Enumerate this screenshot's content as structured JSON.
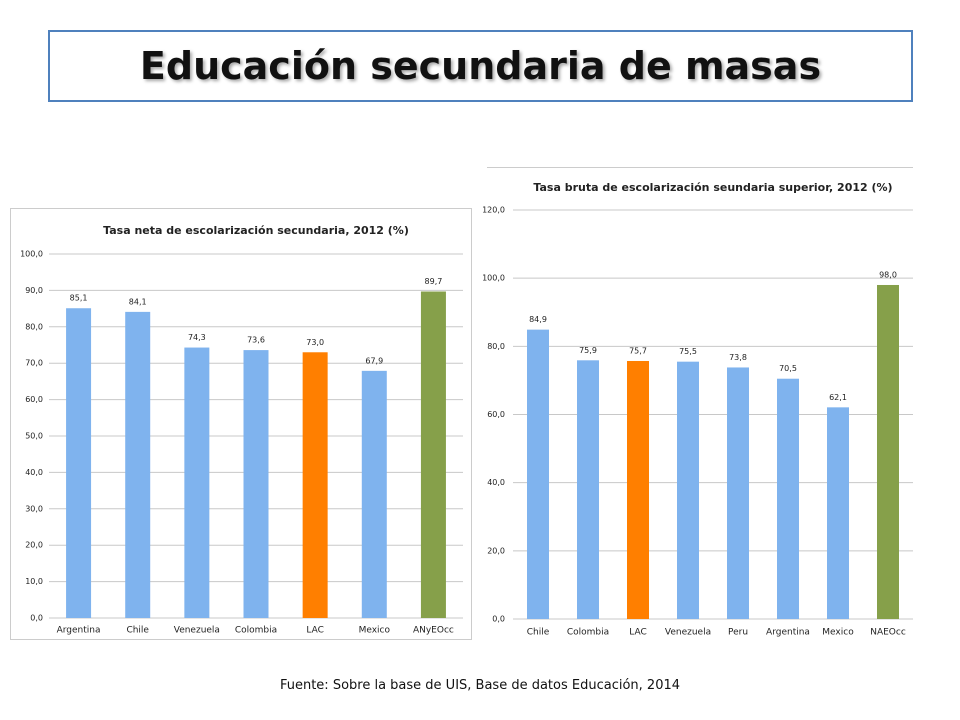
{
  "title": "Educación secundaria de masas",
  "source": "Fuente: Sobre la base de UIS, Base de datos Educación, 2014",
  "chart_data": [
    {
      "type": "bar",
      "title": "Tasa neta de escolarización secundaria, 2012 (%)",
      "categories": [
        "Argentina",
        "Chile",
        "Venezuela",
        "Colombia",
        "LAC",
        "Mexico",
        "ANyEOcc"
      ],
      "values": [
        85.1,
        84.1,
        74.3,
        73.6,
        73.0,
        67.9,
        89.7
      ],
      "value_labels": [
        "85,1",
        "84,1",
        "74,3",
        "73,6",
        "73,0",
        "67,9",
        "89,7"
      ],
      "colors": [
        "#7fb3ee",
        "#7fb3ee",
        "#7fb3ee",
        "#7fb3ee",
        "#ff7f00",
        "#7fb3ee",
        "#86a04a"
      ],
      "ylim": [
        0,
        100
      ],
      "yticks": [
        {
          "value": 0,
          "label": "0,0"
        },
        {
          "value": 10,
          "label": "10,0"
        },
        {
          "value": 20,
          "label": "20,0"
        },
        {
          "value": 30,
          "label": "30,0"
        },
        {
          "value": 40,
          "label": "40,0"
        },
        {
          "value": 50,
          "label": "50,0"
        },
        {
          "value": 60,
          "label": "60,0"
        },
        {
          "value": 70,
          "label": "70,0"
        },
        {
          "value": 80,
          "label": "80,0"
        },
        {
          "value": 90,
          "label": "90,0"
        },
        {
          "value": 100,
          "label": "100,0"
        }
      ],
      "grid": true
    },
    {
      "type": "bar",
      "title": "Tasa bruta de escolarización seundaria superior, 2012 (%)",
      "categories": [
        "Chile",
        "Colombia",
        "LAC",
        "Venezuela",
        "Peru",
        "Argentina",
        "Mexico",
        "NAEOcc"
      ],
      "values": [
        84.9,
        75.9,
        75.7,
        75.5,
        73.8,
        70.5,
        62.1,
        98.0
      ],
      "value_labels": [
        "84,9",
        "75,9",
        "75,7",
        "75,5",
        "73,8",
        "70,5",
        "62,1",
        "98,0"
      ],
      "colors": [
        "#7fb3ee",
        "#7fb3ee",
        "#ff7f00",
        "#7fb3ee",
        "#7fb3ee",
        "#7fb3ee",
        "#7fb3ee",
        "#86a04a"
      ],
      "ylim": [
        0,
        120
      ],
      "yticks": [
        {
          "value": 0,
          "label": "0,0"
        },
        {
          "value": 20,
          "label": "20,0"
        },
        {
          "value": 40,
          "label": "40,0"
        },
        {
          "value": 60,
          "label": "60,0"
        },
        {
          "value": 80,
          "label": "80,0"
        },
        {
          "value": 100,
          "label": "100,0"
        },
        {
          "value": 120,
          "label": "120,0"
        }
      ],
      "grid": true
    }
  ]
}
